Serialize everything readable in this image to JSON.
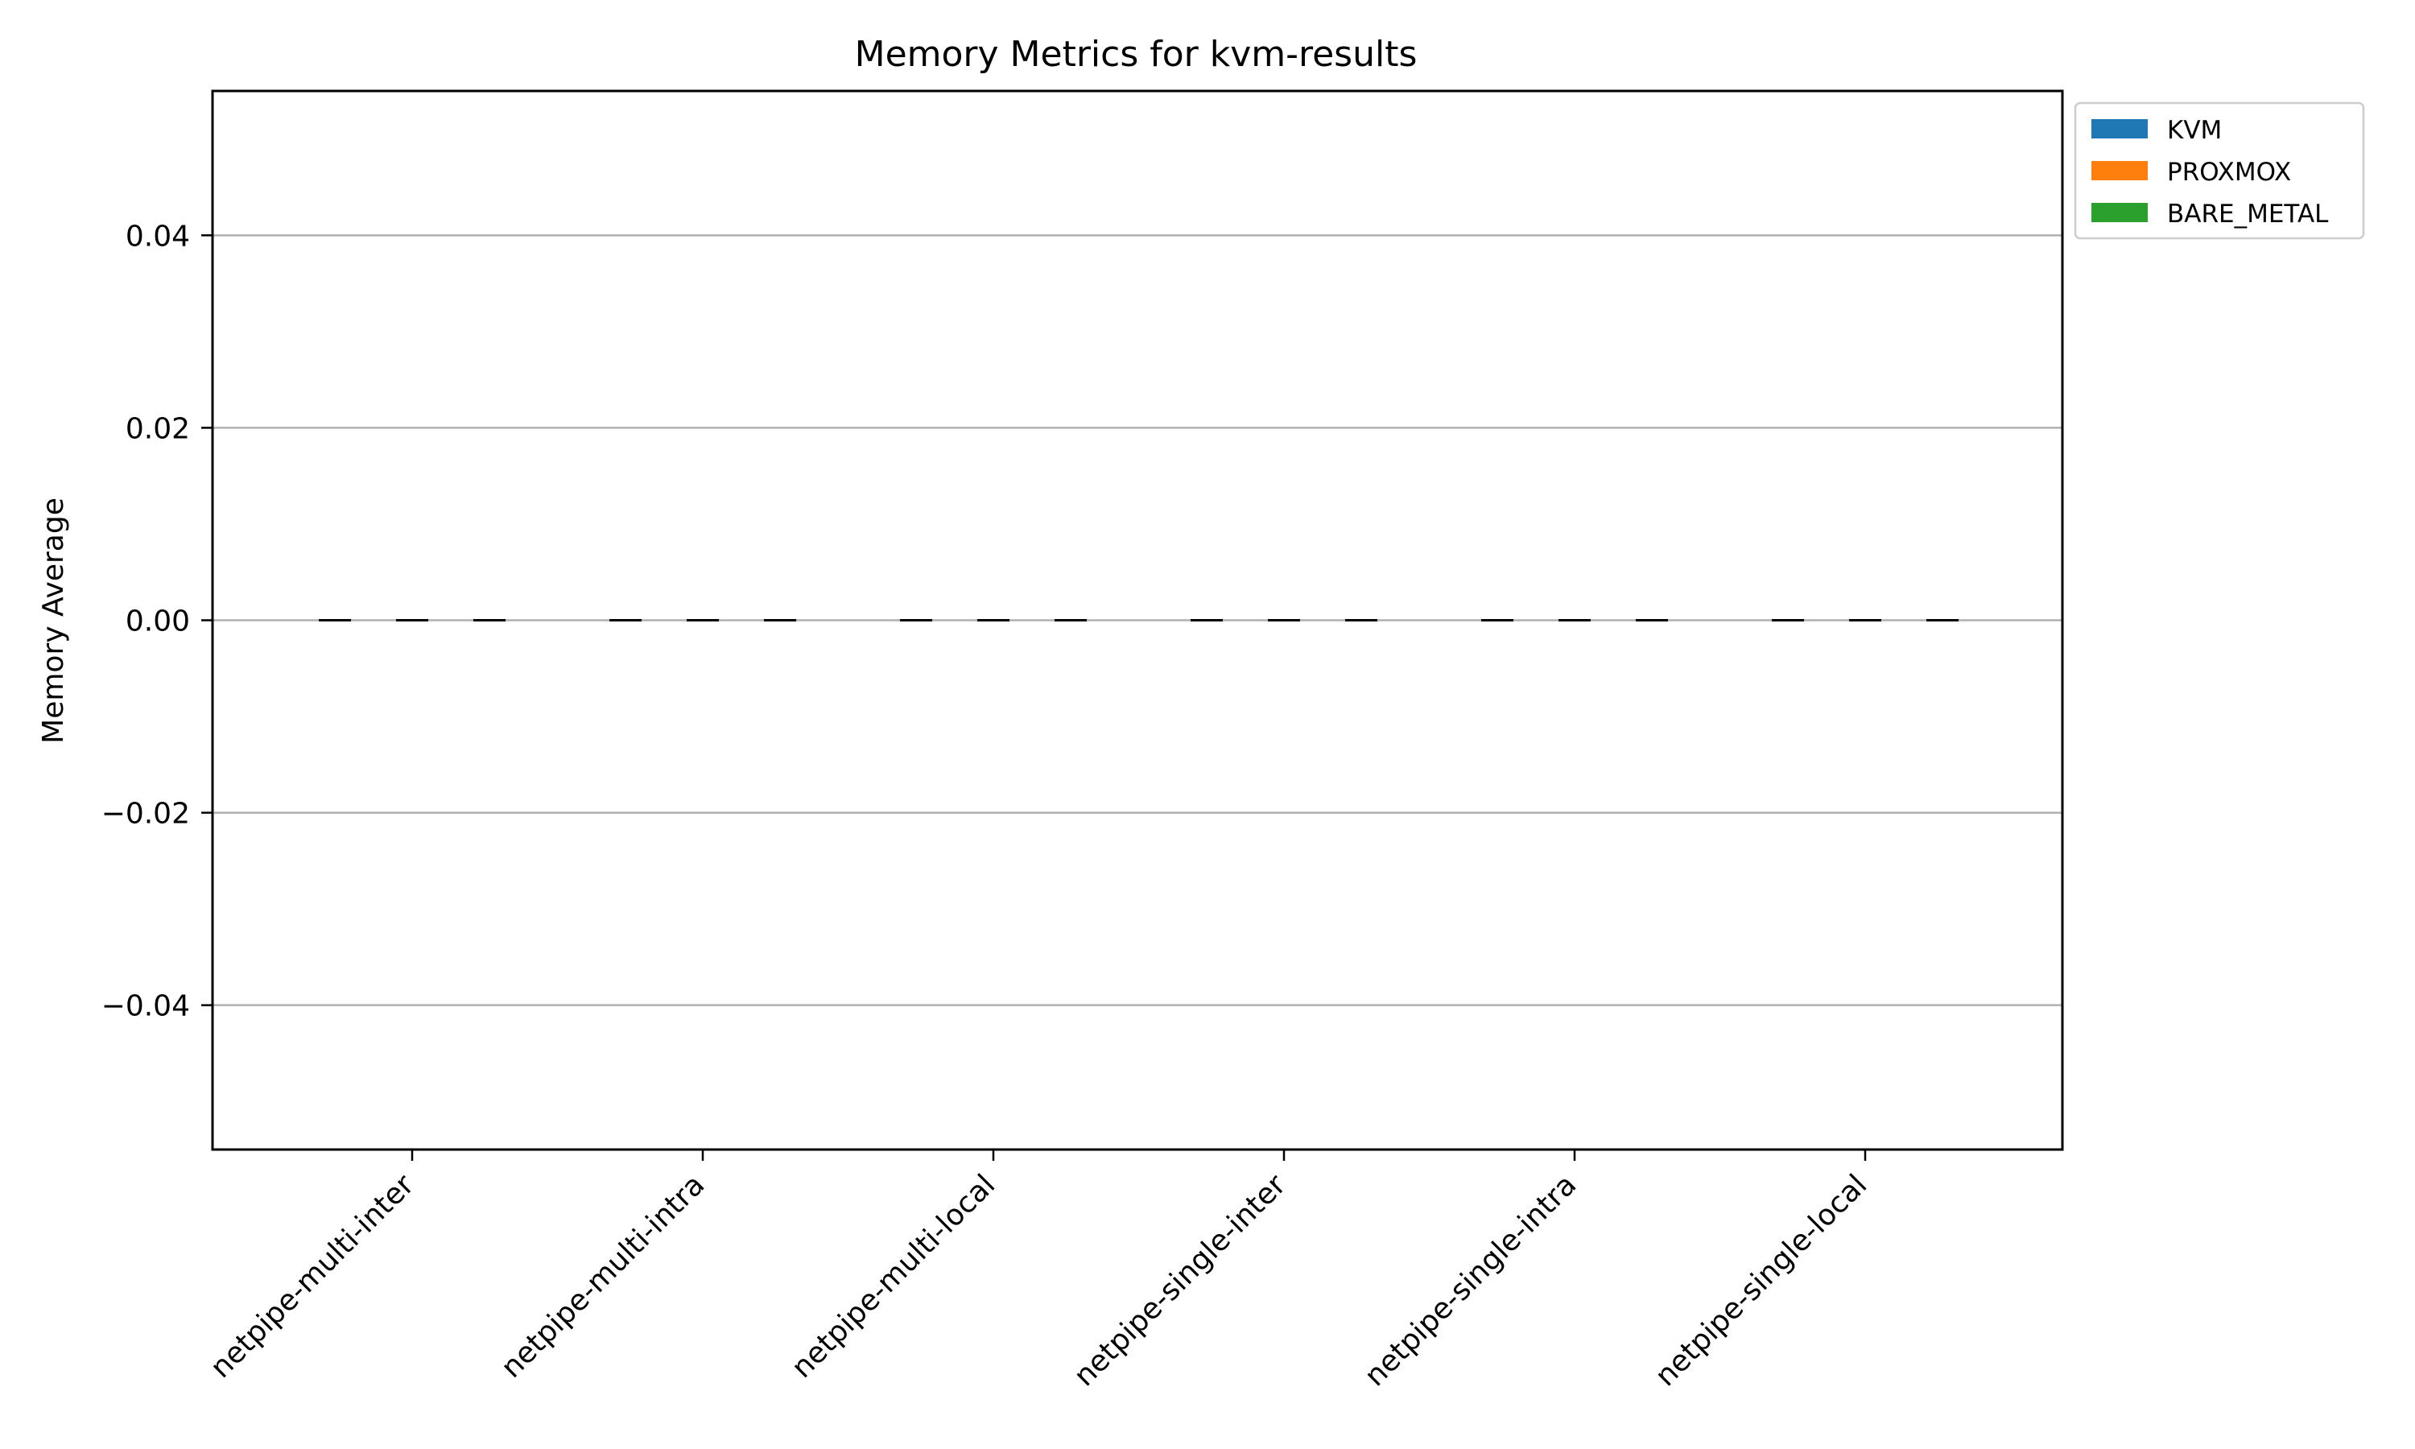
{
  "colors": {
    "KVM": "#1f77b4",
    "PROXMOX": "#ff7f0e",
    "BARE_METAL": "#2ca02c",
    "grid": "#b0b0b0",
    "error_bar": "#000000"
  },
  "chart_data": {
    "type": "bar",
    "title": "Memory Metrics for kvm-results",
    "xlabel": "",
    "ylabel": "Memory Average",
    "categories": [
      "netpipe-multi-inter",
      "netpipe-multi-intra",
      "netpipe-multi-local",
      "netpipe-single-inter",
      "netpipe-single-intra",
      "netpipe-single-local"
    ],
    "series": [
      {
        "name": "KVM",
        "values": [
          0,
          0,
          0,
          0,
          0,
          0
        ]
      },
      {
        "name": "PROXMOX",
        "values": [
          0,
          0,
          0,
          0,
          0,
          0
        ]
      },
      {
        "name": "BARE_METAL",
        "values": [
          0,
          0,
          0,
          0,
          0,
          0
        ]
      }
    ],
    "error": [
      0,
      0,
      0,
      0,
      0,
      0
    ],
    "ylim": [
      -0.055,
      0.055
    ],
    "yticks": [
      -0.04,
      -0.02,
      0.0,
      0.02,
      0.04
    ],
    "ytick_labels": [
      "−0.04",
      "−0.02",
      "0.00",
      "0.02",
      "0.04"
    ],
    "grid": "y",
    "legend_position": "outside top-right"
  }
}
